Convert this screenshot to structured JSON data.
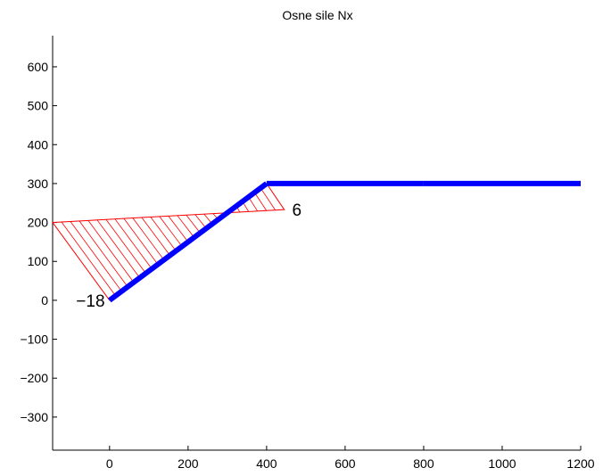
{
  "chart_data": {
    "type": "line",
    "title": "Osne sile Nx",
    "xlabel": "",
    "ylabel": "",
    "xlim": [
      -145,
      1200
    ],
    "ylim": [
      -385,
      680
    ],
    "xticks": [
      0,
      200,
      400,
      600,
      800,
      1000,
      1200
    ],
    "yticks": [
      -300,
      -200,
      -100,
      0,
      100,
      200,
      300,
      400,
      500,
      600
    ],
    "grid": false,
    "structure": {
      "color": "#0000ff",
      "points": [
        [
          0,
          0
        ],
        [
          400,
          300
        ],
        [
          800,
          300
        ],
        [
          1200,
          300
        ]
      ]
    },
    "force_diagram": {
      "color": "#ff0000",
      "base_start": [
        0,
        0
      ],
      "base_end": [
        400,
        300
      ],
      "offset_start": [
        -145,
        200
      ],
      "offset_end": [
        445,
        233
      ],
      "hatch_count": 26
    },
    "annotations": [
      {
        "text": "−18",
        "x": -12,
        "y": 0,
        "anchor": "end"
      },
      {
        "text": "6",
        "x": 465,
        "y": 233,
        "anchor": "start"
      }
    ]
  }
}
